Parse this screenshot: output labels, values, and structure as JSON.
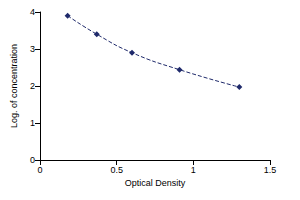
{
  "chart_data": {
    "type": "line",
    "xlabel": "Optical Density",
    "ylabel": "Log. of concentration",
    "x": [
      0.18,
      0.37,
      0.6,
      0.91,
      1.3
    ],
    "values": [
      3.9,
      3.4,
      2.9,
      2.44,
      1.97
    ],
    "xlim": [
      0,
      1.5
    ],
    "xticks": [
      0,
      0.5,
      1,
      1.5
    ],
    "ylim": [
      0,
      4
    ],
    "yticks": [
      0,
      1,
      2,
      3,
      4
    ],
    "color": "#1f2a6b",
    "marker": "diamond",
    "line_style": "dashed",
    "grid": false
  }
}
